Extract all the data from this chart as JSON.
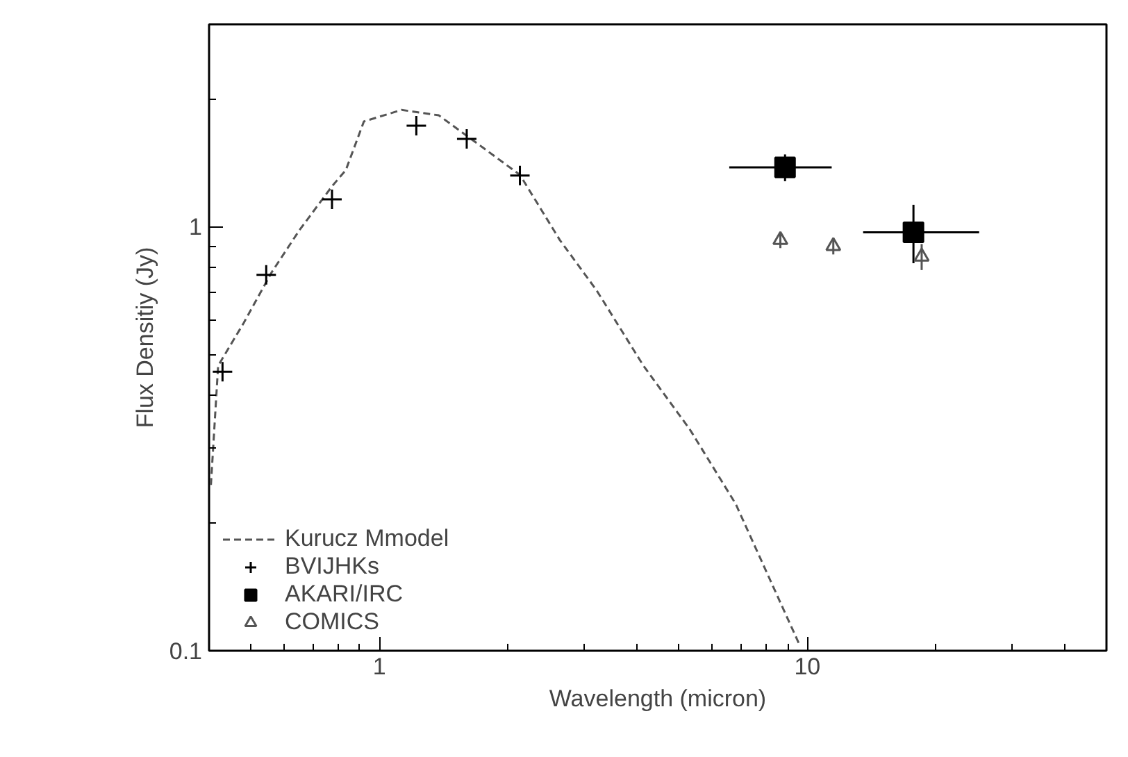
{
  "chart_data": {
    "type": "scatter",
    "xlabel": "Wavelength (micron)",
    "ylabel": "Flux Densitiy (Jy)",
    "log": "xy",
    "xlim": [
      0.4,
      50
    ],
    "ylim": [
      0.1,
      3
    ],
    "xticks": [
      1,
      10
    ],
    "yticks": [
      0.1,
      1
    ],
    "grid": false,
    "legend": "bottom left",
    "series": [
      {
        "name": "Kurucz Mmodel",
        "type": "line",
        "line_style": "dashed",
        "marker": "none",
        "color": "#555555",
        "x": [
          0.404,
          0.42,
          0.482,
          0.56,
          0.65,
          0.775,
          0.835,
          0.92,
          1.127,
          1.377,
          1.68,
          2.13,
          2.64,
          3.22,
          4.14,
          5.31,
          6.8,
          9.6
        ],
        "values": [
          0.246,
          0.47,
          0.593,
          0.78,
          0.98,
          1.245,
          1.36,
          1.77,
          1.885,
          1.83,
          1.58,
          1.325,
          0.93,
          0.707,
          0.47,
          0.333,
          0.222,
          0.103
        ]
      },
      {
        "name": "BVIJHKs",
        "marker": "cross",
        "color": "#000000",
        "x": [
          0.43,
          0.544,
          0.775,
          1.22,
          1.6,
          2.13
        ],
        "values": [
          0.455,
          0.77,
          1.16,
          1.73,
          1.61,
          1.32
        ]
      },
      {
        "name": "AKARI/IRC",
        "marker": "square",
        "color": "#000000",
        "x": [
          8.87,
          17.7
        ],
        "values": [
          1.38,
          0.97
        ],
        "errors": [
          [
            1.28,
            1.48
          ],
          [
            0.82,
            1.126
          ]
        ],
        "xerrors": [
          [
            6.57,
            11.4
          ],
          [
            13.5,
            25.2
          ]
        ]
      },
      {
        "name": "COMICS",
        "marker": "triangle",
        "color": "#555555",
        "x": [
          8.65,
          11.5,
          18.5
        ],
        "values": [
          0.93,
          0.9,
          0.85
        ],
        "errors": [
          0.04,
          0.04,
          0.06
        ]
      }
    ]
  }
}
